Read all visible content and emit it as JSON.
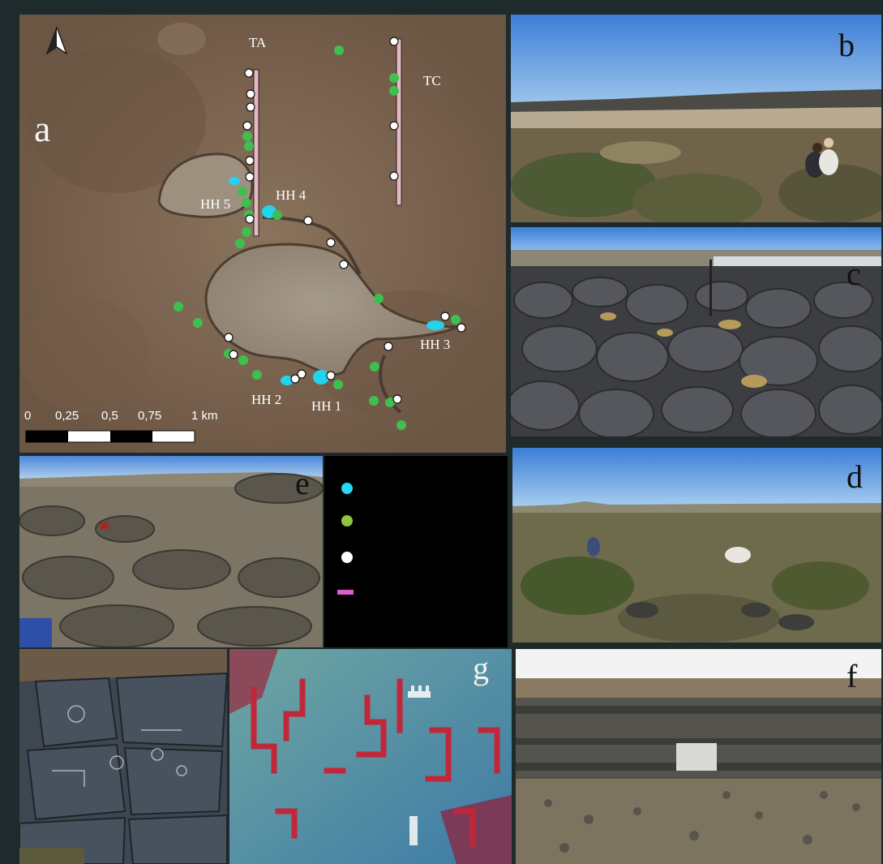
{
  "panels": {
    "a": "a",
    "b": "b",
    "c": "c",
    "d": "d",
    "e": "e",
    "f": "f",
    "g": "g"
  },
  "map": {
    "transect_labels": [
      "TA",
      "TC"
    ],
    "site_labels": [
      "HH 5",
      "HH 4",
      "HH 3",
      "HH 2",
      "HH 1"
    ],
    "scale": {
      "ticks": [
        "0",
        "0,25",
        "0,5",
        "0,75",
        "1 km"
      ]
    },
    "north_arrow_icon": "north-arrow-icon"
  },
  "legend": {
    "items": [
      {
        "symbol": "dot",
        "color": "#27d6f2"
      },
      {
        "symbol": "dot",
        "color": "#8cc63f"
      },
      {
        "symbol": "dot",
        "color": "#ffffff"
      },
      {
        "symbol": "bar",
        "color": "#d75fc8"
      }
    ]
  },
  "colors": {
    "map_terrain": "#7a6450",
    "lagoon": "#9a8e80",
    "site_cyan": "#22d3ee",
    "site_green": "#3fbf4f",
    "site_white": "#ffffff",
    "transect_pink": "#e8b8c0"
  }
}
